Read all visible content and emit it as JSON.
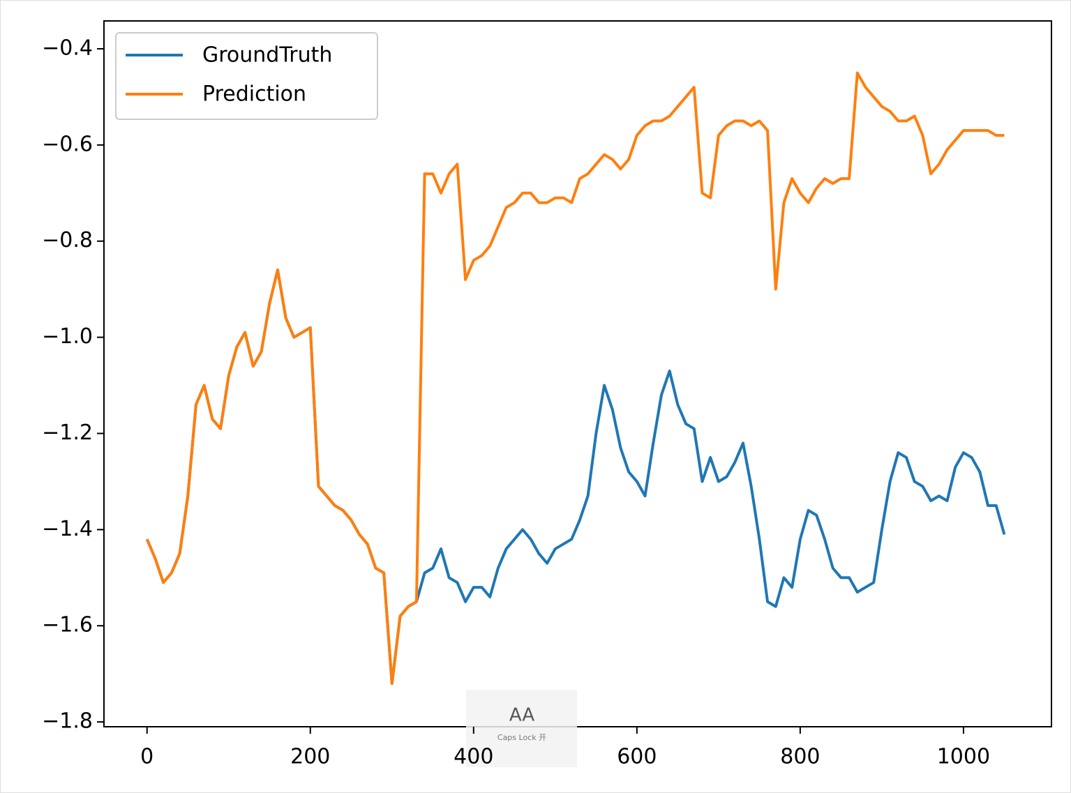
{
  "chart_data": {
    "type": "line",
    "x": [
      0,
      10,
      20,
      30,
      40,
      50,
      60,
      70,
      80,
      90,
      100,
      110,
      120,
      130,
      140,
      150,
      160,
      170,
      180,
      190,
      200,
      210,
      220,
      230,
      240,
      250,
      260,
      270,
      280,
      290,
      300,
      310,
      320,
      330,
      340,
      350,
      360,
      370,
      380,
      390,
      400,
      410,
      420,
      430,
      440,
      450,
      460,
      470,
      480,
      490,
      500,
      510,
      520,
      530,
      540,
      550,
      560,
      570,
      580,
      590,
      600,
      610,
      620,
      630,
      640,
      650,
      660,
      670,
      680,
      690,
      700,
      710,
      720,
      730,
      740,
      750,
      760,
      770,
      780,
      790,
      800,
      810,
      820,
      830,
      840,
      850,
      860,
      870,
      880,
      890,
      900,
      910,
      920,
      930,
      940,
      950,
      960,
      970,
      980,
      990,
      1000,
      1010,
      1020,
      1030,
      1040,
      1050
    ],
    "series": [
      {
        "name": "GroundTruth",
        "color": "#1f77b4",
        "values": [
          -1.42,
          -1.46,
          -1.51,
          -1.49,
          -1.45,
          -1.33,
          -1.14,
          -1.1,
          -1.17,
          -1.19,
          -1.08,
          -1.02,
          -0.99,
          -1.06,
          -1.03,
          -0.93,
          -0.86,
          -0.96,
          -1.0,
          -0.99,
          -0.98,
          -1.31,
          -1.33,
          -1.35,
          -1.36,
          -1.38,
          -1.41,
          -1.43,
          -1.48,
          -1.49,
          -1.72,
          -1.58,
          -1.56,
          -1.55,
          -1.49,
          -1.48,
          -1.44,
          -1.5,
          -1.51,
          -1.55,
          -1.52,
          -1.52,
          -1.54,
          -1.48,
          -1.44,
          -1.42,
          -1.4,
          -1.42,
          -1.45,
          -1.47,
          -1.44,
          -1.43,
          -1.42,
          -1.38,
          -1.33,
          -1.2,
          -1.1,
          -1.15,
          -1.23,
          -1.28,
          -1.3,
          -1.33,
          -1.22,
          -1.12,
          -1.07,
          -1.14,
          -1.18,
          -1.19,
          -1.3,
          -1.25,
          -1.3,
          -1.29,
          -1.26,
          -1.22,
          -1.31,
          -1.42,
          -1.55,
          -1.56,
          -1.5,
          -1.52,
          -1.42,
          -1.36,
          -1.37,
          -1.42,
          -1.48,
          -1.5,
          -1.5,
          -1.53,
          -1.52,
          -1.51,
          -1.4,
          -1.3,
          -1.24,
          -1.25,
          -1.3,
          -1.31,
          -1.34,
          -1.33,
          -1.34,
          -1.27,
          -1.24,
          -1.25,
          -1.28,
          -1.35,
          -1.35,
          -1.41
        ]
      },
      {
        "name": "Prediction",
        "color": "#ff7f0e",
        "values": [
          -1.42,
          -1.46,
          -1.51,
          -1.49,
          -1.45,
          -1.33,
          -1.14,
          -1.1,
          -1.17,
          -1.19,
          -1.08,
          -1.02,
          -0.99,
          -1.06,
          -1.03,
          -0.93,
          -0.86,
          -0.96,
          -1.0,
          -0.99,
          -0.98,
          -1.31,
          -1.33,
          -1.35,
          -1.36,
          -1.38,
          -1.41,
          -1.43,
          -1.48,
          -1.49,
          -1.72,
          -1.58,
          -1.56,
          -1.55,
          -0.66,
          -0.66,
          -0.7,
          -0.66,
          -0.64,
          -0.88,
          -0.84,
          -0.83,
          -0.81,
          -0.77,
          -0.73,
          -0.72,
          -0.7,
          -0.7,
          -0.72,
          -0.72,
          -0.71,
          -0.71,
          -0.72,
          -0.67,
          -0.66,
          -0.64,
          -0.62,
          -0.63,
          -0.65,
          -0.63,
          -0.58,
          -0.56,
          -0.55,
          -0.55,
          -0.54,
          -0.52,
          -0.5,
          -0.48,
          -0.7,
          -0.71,
          -0.58,
          -0.56,
          -0.55,
          -0.55,
          -0.56,
          -0.55,
          -0.57,
          -0.9,
          -0.72,
          -0.67,
          -0.7,
          -0.72,
          -0.69,
          -0.67,
          -0.68,
          -0.67,
          -0.67,
          -0.45,
          -0.48,
          -0.5,
          -0.52,
          -0.53,
          -0.55,
          -0.55,
          -0.54,
          -0.58,
          -0.66,
          -0.64,
          -0.61,
          -0.59,
          -0.57,
          -0.57,
          -0.57,
          -0.57,
          -0.58,
          -0.58
        ]
      }
    ],
    "xlim": [
      -52.75,
      1107.75
    ],
    "ylim": [
      -1.81,
      -0.342
    ],
    "xticks": [
      0,
      200,
      400,
      600,
      800,
      1000
    ],
    "yticks": [
      {
        "value": -1.8,
        "label": "−1.8"
      },
      {
        "value": -1.6,
        "label": "−1.6"
      },
      {
        "value": -1.4,
        "label": "−1.4"
      },
      {
        "value": -1.2,
        "label": "−1.2"
      },
      {
        "value": -1.0,
        "label": "−1.0"
      },
      {
        "value": -0.8,
        "label": "−0.8"
      },
      {
        "value": -0.6,
        "label": "−0.6"
      },
      {
        "value": -0.4,
        "label": "−0.4"
      }
    ],
    "legend": "upper left",
    "grid": false
  },
  "overlay": {
    "icon": "AA",
    "label": "Caps Lock 开"
  }
}
